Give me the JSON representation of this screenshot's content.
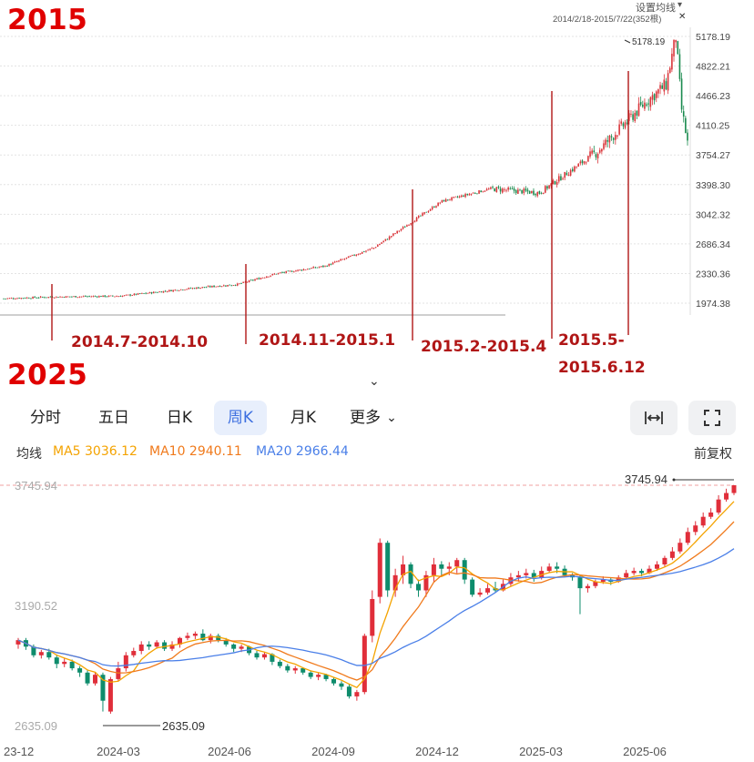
{
  "top": {
    "year": "2015",
    "settings_label": "设置均线",
    "range_label": "2014/2/18-2015/7/22(352根)",
    "peak_label": "5178.19",
    "periods": [
      "2014.7-2014.10",
      "2014.11-2015.1",
      "2015.2-2015.4",
      "2015.5-",
      "2015.6.12"
    ]
  },
  "bottom": {
    "year": "2025",
    "tabs": [
      "分时",
      "五日",
      "日K",
      "周K",
      "月K",
      "更多"
    ],
    "active_tab": "周K",
    "ma_title": "均线",
    "ma5": "MA5 3036.12",
    "ma10": "MA10 2940.11",
    "ma20": "MA20 2966.44",
    "adjust_label": "前复权",
    "high_label": "3745.94",
    "low_label": "2635.09"
  },
  "chart_data": [
    {
      "type": "candlestick",
      "title": "2015",
      "x_range": [
        "2014/2/18",
        "2015/7/22"
      ],
      "ylim": [
        1800,
        5300
      ],
      "y_ticks": [
        5178.19,
        4822.21,
        4466.23,
        4110.25,
        3754.27,
        3398.3,
        3042.32,
        2686.34,
        2330.36,
        1974.38
      ],
      "grid": true,
      "approx_close_series": {
        "x": [
          "2014-02",
          "2014-04",
          "2014-06",
          "2014-07",
          "2014-08",
          "2014-09",
          "2014-10",
          "2014-11",
          "2014-12",
          "2015-01",
          "2015-02",
          "2015-03",
          "2015-04",
          "2015-05",
          "2015-06-12",
          "2015-06",
          "2015-07"
        ],
        "y": [
          2030,
          2050,
          2060,
          2150,
          2200,
          2330,
          2420,
          2640,
          3200,
          3350,
          3300,
          3800,
          4400,
          4600,
          5178.19,
          4300,
          3900
        ]
      },
      "annotations": [
        "5178.19",
        "2014.7-2014.10",
        "2014.11-2015.1",
        "2015.2-2015.4",
        "2015.5-",
        "2015.6.12"
      ]
    },
    {
      "type": "candlestick",
      "title": "2025",
      "period": "周K",
      "x_tick_labels": [
        "23-12",
        "2024-03",
        "2024-06",
        "2024-09",
        "2024-12",
        "2025-03",
        "2025-06"
      ],
      "y_ticks": [
        3745.94,
        3190.52,
        2635.09
      ],
      "ylim": [
        2635.09,
        3745.94
      ],
      "legend": [
        {
          "name": "MA5 3036.12",
          "color": "#f4a300"
        },
        {
          "name": "MA10 2940.11",
          "color": "#f07a1c"
        },
        {
          "name": "MA20 2966.44",
          "color": "#4a7fe8"
        }
      ],
      "candles": [
        [
          3010,
          3030,
          3040,
          2990
        ],
        [
          3030,
          3000,
          3040,
          2985
        ],
        [
          3000,
          2960,
          3010,
          2950
        ],
        [
          2960,
          2975,
          2985,
          2945
        ],
        [
          2975,
          2950,
          2990,
          2940
        ],
        [
          2950,
          2920,
          2960,
          2900
        ],
        [
          2920,
          2930,
          2945,
          2905
        ],
        [
          2930,
          2900,
          2940,
          2890
        ],
        [
          2900,
          2880,
          2910,
          2860
        ],
        [
          2880,
          2830,
          2890,
          2820
        ],
        [
          2830,
          2870,
          2880,
          2820
        ],
        [
          2870,
          2750,
          2880,
          2700
        ],
        [
          2700,
          2850,
          2860,
          2690
        ],
        [
          2850,
          2900,
          2930,
          2840
        ],
        [
          2900,
          2960,
          2975,
          2885
        ],
        [
          2960,
          2980,
          2995,
          2950
        ],
        [
          2980,
          3010,
          3025,
          2965
        ],
        [
          3010,
          3000,
          3025,
          2985
        ],
        [
          3000,
          3020,
          3030,
          2990
        ],
        [
          3020,
          2990,
          3030,
          2980
        ],
        [
          2990,
          3010,
          3025,
          2980
        ],
        [
          3010,
          3040,
          3045,
          2995
        ],
        [
          3040,
          3050,
          3065,
          3030
        ],
        [
          3050,
          3060,
          3070,
          3035
        ],
        [
          3060,
          3030,
          3080,
          3025
        ],
        [
          3030,
          3050,
          3060,
          3015
        ],
        [
          3050,
          3030,
          3060,
          3020
        ],
        [
          3030,
          3010,
          3040,
          3000
        ],
        [
          3010,
          2990,
          3015,
          2975
        ],
        [
          2990,
          3000,
          3010,
          2975
        ],
        [
          3000,
          2970,
          3005,
          2960
        ],
        [
          2970,
          2950,
          2980,
          2940
        ],
        [
          2950,
          2965,
          2975,
          2940
        ],
        [
          2965,
          2930,
          2970,
          2915
        ],
        [
          2930,
          2910,
          2940,
          2900
        ],
        [
          2910,
          2890,
          2920,
          2880
        ],
        [
          2890,
          2900,
          2910,
          2875
        ],
        [
          2900,
          2880,
          2905,
          2870
        ],
        [
          2880,
          2860,
          2890,
          2850
        ],
        [
          2860,
          2870,
          2880,
          2845
        ],
        [
          2870,
          2850,
          2875,
          2840
        ],
        [
          2850,
          2830,
          2860,
          2820
        ],
        [
          2830,
          2815,
          2840,
          2800
        ],
        [
          2815,
          2770,
          2825,
          2760
        ],
        [
          2770,
          2790,
          2800,
          2750
        ],
        [
          2790,
          3050,
          3060,
          2780
        ],
        [
          3050,
          3220,
          3260,
          3020
        ],
        [
          3230,
          3480,
          3500,
          3200
        ],
        [
          3480,
          3260,
          3490,
          3230
        ],
        [
          3260,
          3330,
          3360,
          3230
        ],
        [
          3330,
          3380,
          3420,
          3290
        ],
        [
          3380,
          3290,
          3390,
          3270
        ],
        [
          3290,
          3260,
          3310,
          3230
        ],
        [
          3260,
          3330,
          3350,
          3230
        ],
        [
          3330,
          3380,
          3410,
          3300
        ],
        [
          3380,
          3360,
          3395,
          3330
        ],
        [
          3360,
          3370,
          3390,
          3330
        ],
        [
          3370,
          3400,
          3410,
          3340
        ],
        [
          3400,
          3310,
          3410,
          3290
        ],
        [
          3310,
          3240,
          3320,
          3230
        ],
        [
          3240,
          3250,
          3270,
          3230
        ],
        [
          3250,
          3270,
          3290,
          3240
        ],
        [
          3270,
          3260,
          3300,
          3250
        ],
        [
          3260,
          3290,
          3310,
          3255
        ],
        [
          3290,
          3320,
          3340,
          3280
        ],
        [
          3320,
          3330,
          3350,
          3300
        ],
        [
          3330,
          3340,
          3360,
          3315
        ],
        [
          3340,
          3320,
          3355,
          3300
        ],
        [
          3320,
          3350,
          3370,
          3310
        ],
        [
          3350,
          3370,
          3385,
          3340
        ],
        [
          3370,
          3360,
          3390,
          3340
        ],
        [
          3360,
          3330,
          3375,
          3320
        ],
        [
          3330,
          3320,
          3340,
          3305
        ],
        [
          3320,
          3270,
          3330,
          3150
        ],
        [
          3270,
          3280,
          3290,
          3250
        ],
        [
          3280,
          3300,
          3310,
          3270
        ],
        [
          3300,
          3310,
          3325,
          3290
        ],
        [
          3310,
          3300,
          3320,
          3285
        ],
        [
          3300,
          3320,
          3330,
          3295
        ],
        [
          3320,
          3340,
          3355,
          3310
        ],
        [
          3340,
          3350,
          3365,
          3330
        ],
        [
          3350,
          3340,
          3360,
          3325
        ],
        [
          3340,
          3360,
          3375,
          3335
        ],
        [
          3360,
          3380,
          3395,
          3350
        ],
        [
          3380,
          3410,
          3420,
          3370
        ],
        [
          3410,
          3440,
          3460,
          3400
        ],
        [
          3440,
          3480,
          3500,
          3430
        ],
        [
          3480,
          3530,
          3550,
          3470
        ],
        [
          3530,
          3560,
          3580,
          3515
        ],
        [
          3560,
          3600,
          3620,
          3550
        ],
        [
          3600,
          3620,
          3640,
          3590
        ],
        [
          3620,
          3680,
          3700,
          3610
        ],
        [
          3680,
          3710,
          3730,
          3670
        ],
        [
          3710,
          3745.94,
          3745.94,
          3700
        ]
      ]
    }
  ]
}
